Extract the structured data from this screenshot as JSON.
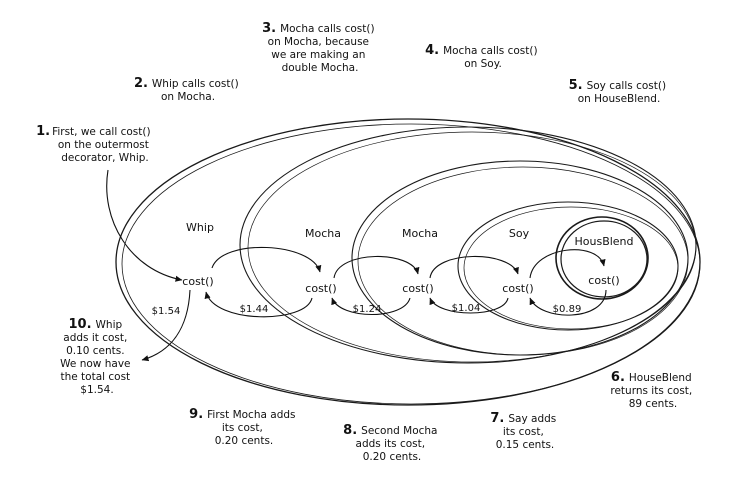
{
  "colors": {
    "fill_outer": "#8e8ef5",
    "fill_inner": "#b9b9fb",
    "stroke": "#1a1a1a"
  },
  "layers": [
    {
      "name": "Whip",
      "method": "cost()",
      "returns": "$1.54"
    },
    {
      "name": "Mocha",
      "method": "cost()",
      "returns": "$1.44"
    },
    {
      "name": "Mocha",
      "method": "cost()",
      "returns": "$1.24"
    },
    {
      "name": "Soy",
      "method": "cost()",
      "returns": "$1.04"
    },
    {
      "name": "HousBlend",
      "method": "cost()",
      "returns": "$0.89"
    }
  ],
  "steps": [
    {
      "num": "1.",
      "lines": [
        "First, we call cost()",
        "on the outermost",
        "decorator, Whip."
      ]
    },
    {
      "num": "2.",
      "lines": [
        "Whip calls cost()",
        "on Mocha."
      ]
    },
    {
      "num": "3.",
      "lines": [
        "Mocha calls cost()",
        "on Mocha, because",
        "we are making an",
        "double Mocha."
      ]
    },
    {
      "num": "4.",
      "lines": [
        "Mocha calls cost()",
        "on Soy."
      ]
    },
    {
      "num": "5.",
      "lines": [
        "Soy calls cost()",
        "on HouseBlend."
      ]
    },
    {
      "num": "6.",
      "lines": [
        "HouseBlend",
        "returns its cost,",
        "89 cents."
      ]
    },
    {
      "num": "7.",
      "lines": [
        "Say adds",
        "its cost,",
        "0.15 cents."
      ]
    },
    {
      "num": "8.",
      "lines": [
        "Second Mocha",
        "adds its cost,",
        "0.20 cents."
      ]
    },
    {
      "num": "9.",
      "lines": [
        "First Mocha adds",
        "its cost,",
        "0.20 cents."
      ]
    },
    {
      "num": "10.",
      "lines": [
        "Whip",
        "adds it cost,",
        "0.10 cents.",
        "We now have",
        "the total cost",
        "$1.54."
      ]
    }
  ]
}
